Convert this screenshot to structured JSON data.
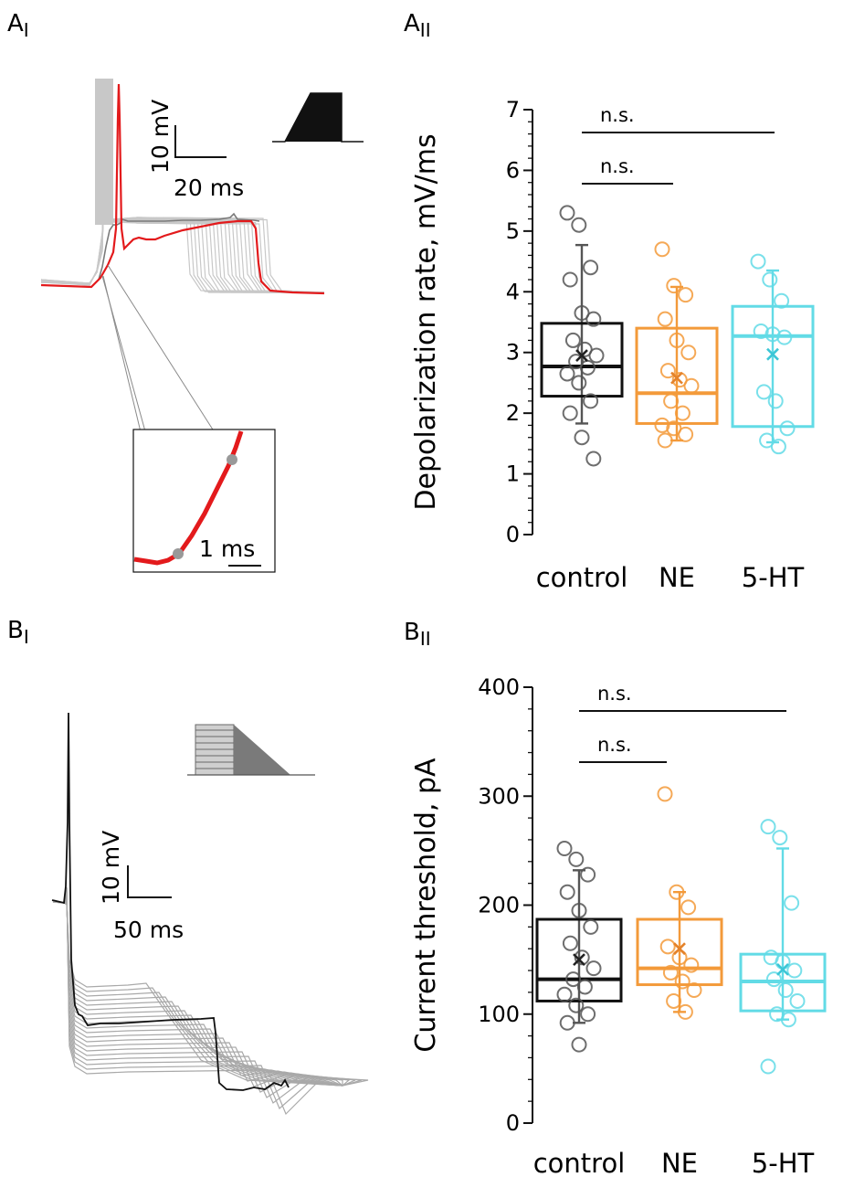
{
  "panels": {
    "a1": {
      "letter": "A",
      "sub": "I"
    },
    "a2": {
      "letter": "A",
      "sub": "II"
    },
    "b1": {
      "letter": "B",
      "sub": "I"
    },
    "b2": {
      "letter": "B",
      "sub": "II"
    }
  },
  "traces": {
    "a1": {
      "voltage_scale": "10 mV",
      "time_scale": "20 ms",
      "inset_scale": "1 ms",
      "trace_color": "#e31a1c",
      "family_color": "#c8c8c8"
    },
    "b1": {
      "voltage_scale": "10 mV",
      "time_scale": "50 ms",
      "trace_color": "#111111",
      "family_color": "#a9a9a9"
    }
  },
  "colors": {
    "control": "#555555",
    "NE": "#f39a3a",
    "5-HT": "#62dbe6"
  },
  "chart_data": [
    {
      "id": "depolarization",
      "type": "box",
      "ylabel": "Depolarization rate, mV/ms",
      "ylim": [
        0,
        7
      ],
      "yticks": [
        0,
        1,
        2,
        3,
        4,
        5,
        6,
        7
      ],
      "categories": [
        "control",
        "NE",
        "5-HT"
      ],
      "boxes": [
        {
          "q1": 2.28,
          "median": 2.77,
          "q3": 3.48,
          "whisker_low": 1.83,
          "whisker_high": 4.77,
          "mean": 2.95,
          "points": [
            5.3,
            5.1,
            4.4,
            4.2,
            3.65,
            3.55,
            3.2,
            3.05,
            2.95,
            2.85,
            2.75,
            2.65,
            2.5,
            2.2,
            2.0,
            1.6,
            1.25
          ]
        },
        {
          "q1": 1.83,
          "median": 2.33,
          "q3": 3.4,
          "whisker_low": 1.55,
          "whisker_high": 4.08,
          "mean": 2.58,
          "points": [
            4.7,
            4.1,
            3.95,
            3.55,
            3.2,
            3.0,
            2.7,
            2.55,
            2.45,
            2.2,
            2.0,
            1.8,
            1.75,
            1.65,
            1.55
          ]
        },
        {
          "q1": 1.78,
          "median": 3.27,
          "q3": 3.76,
          "whisker_low": 1.52,
          "whisker_high": 4.35,
          "mean": 2.97,
          "points": [
            4.5,
            4.2,
            3.85,
            3.35,
            3.3,
            3.25,
            2.35,
            2.2,
            1.75,
            1.55,
            1.45
          ]
        }
      ],
      "comparisons": [
        {
          "from": "control",
          "to": "NE",
          "label": "n.s."
        },
        {
          "from": "control",
          "to": "5-HT",
          "label": "n.s."
        }
      ]
    },
    {
      "id": "threshold",
      "type": "box",
      "ylabel": "Current threshold, pA",
      "ylim": [
        0,
        400
      ],
      "yticks": [
        0,
        100,
        200,
        300,
        400
      ],
      "categories": [
        "control",
        "NE",
        "5-HT"
      ],
      "boxes": [
        {
          "q1": 112,
          "median": 132,
          "q3": 187,
          "whisker_low": 92,
          "whisker_high": 232,
          "mean": 150,
          "points": [
            252,
            242,
            228,
            212,
            195,
            180,
            165,
            152,
            142,
            132,
            125,
            118,
            108,
            100,
            92,
            72
          ]
        },
        {
          "q1": 127,
          "median": 142,
          "q3": 187,
          "whisker_low": 102,
          "whisker_high": 212,
          "mean": 160,
          "points": [
            302,
            212,
            198,
            162,
            152,
            145,
            138,
            130,
            122,
            112,
            102
          ]
        },
        {
          "q1": 103,
          "median": 130,
          "q3": 155,
          "whisker_low": 95,
          "whisker_high": 252,
          "mean": 141,
          "points": [
            272,
            262,
            202,
            152,
            148,
            140,
            132,
            122,
            112,
            100,
            95,
            52
          ]
        }
      ],
      "comparisons": [
        {
          "from": "control",
          "to": "NE",
          "label": "n.s."
        },
        {
          "from": "control",
          "to": "5-HT",
          "label": "n.s."
        }
      ]
    }
  ]
}
